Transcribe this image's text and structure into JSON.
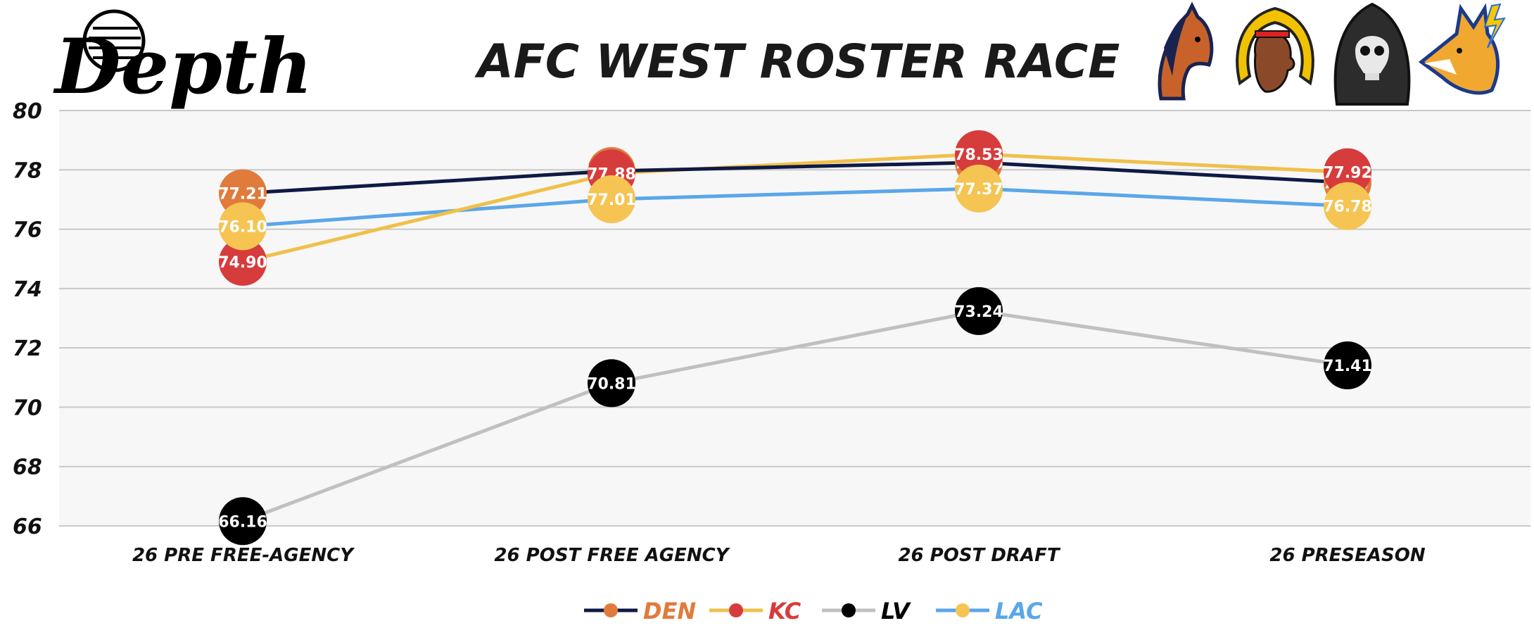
{
  "brand": {
    "logo_text": "Depth"
  },
  "team_icons": [
    "horse-icon",
    "chief-headdress-icon",
    "hooded-skull-icon",
    "lightning-wolf-icon"
  ],
  "chart_data": {
    "type": "line",
    "title": "AFC WEST ROSTER RACE",
    "xlabel": "",
    "ylabel": "",
    "categories": [
      "26 PRE FREE-AGENCY",
      "26 POST FREE AGENCY",
      "26 POST DRAFT",
      "26 PRESEASON"
    ],
    "ylim": [
      66,
      80
    ],
    "yticks": [
      80,
      78,
      76,
      74,
      72,
      70,
      68,
      66
    ],
    "grid": true,
    "legend_position": "bottom",
    "series": [
      {
        "name": "DEN",
        "line_color": "#0e1a45",
        "marker_color": "#e07b3c",
        "label_color": "#e07b3c",
        "values": [
          77.21,
          77.96,
          78.25,
          77.57
        ]
      },
      {
        "name": "KC",
        "line_color": "#f0c04a",
        "marker_color": "#d63c3c",
        "label_color": "#d63c3c",
        "values": [
          74.9,
          77.88,
          78.53,
          77.92
        ]
      },
      {
        "name": "LV",
        "line_color": "#c0c0c0",
        "marker_color": "#000000",
        "label_color": "#000000",
        "values": [
          66.16,
          70.81,
          73.24,
          71.41
        ]
      },
      {
        "name": "LAC",
        "line_color": "#5aa6ea",
        "marker_color": "#f5c452",
        "label_color": "#5aa6ea",
        "values": [
          76.1,
          77.01,
          77.37,
          76.78
        ]
      }
    ]
  }
}
